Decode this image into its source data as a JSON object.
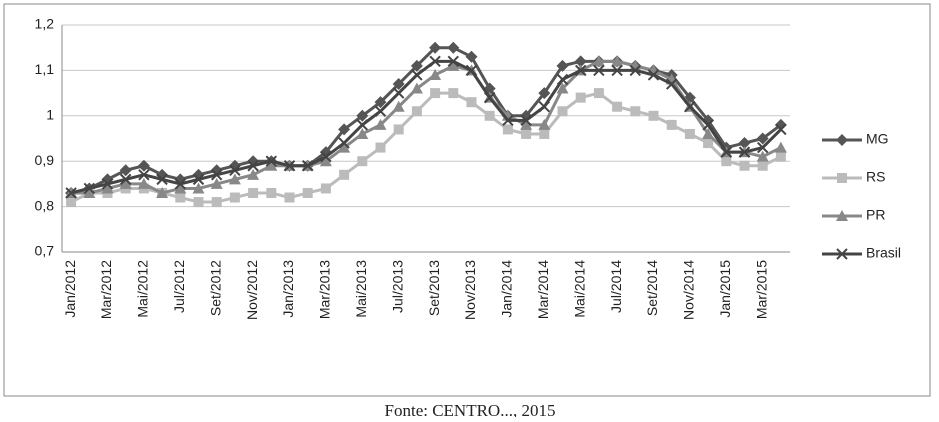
{
  "chart_data": {
    "type": "line",
    "caption": "Fonte: CENTRO..., 2015",
    "categories": [
      "Jan/2012",
      null,
      "Mar/2012",
      null,
      "Mai/2012",
      null,
      "Jul/2012",
      null,
      "Set/2012",
      null,
      "Nov/2012",
      null,
      "Jan/2013",
      null,
      "Mar/2013",
      null,
      "Mai/2013",
      null,
      "Jul/2013",
      null,
      "Set/2013",
      null,
      "Nov/2013",
      null,
      "Jan/2014",
      null,
      "Mar/2014",
      null,
      "Mai/2014",
      null,
      "Jul/2014",
      null,
      "Set/2014",
      null,
      "Nov/2014",
      null,
      "Jan/2015",
      null,
      "Mar/2015",
      null
    ],
    "series": [
      {
        "name": "MG",
        "color": "#555555",
        "marker": "diamond",
        "values": [
          0.83,
          0.84,
          0.86,
          0.88,
          0.89,
          0.87,
          0.86,
          0.87,
          0.88,
          0.89,
          0.9,
          0.9,
          0.89,
          0.89,
          0.92,
          0.97,
          1.0,
          1.03,
          1.07,
          1.11,
          1.15,
          1.15,
          1.13,
          1.06,
          1.0,
          1.0,
          1.05,
          1.11,
          1.12,
          1.12,
          1.12,
          1.11,
          1.1,
          1.09,
          1.04,
          0.99,
          0.93,
          0.94,
          0.95,
          0.98
        ]
      },
      {
        "name": "RS",
        "color": "#bbbbbb",
        "marker": "square",
        "values": [
          0.81,
          0.83,
          0.83,
          0.84,
          0.84,
          0.83,
          0.82,
          0.81,
          0.81,
          0.82,
          0.83,
          0.83,
          0.82,
          0.83,
          0.84,
          0.87,
          0.9,
          0.93,
          0.97,
          1.01,
          1.05,
          1.05,
          1.03,
          1.0,
          0.97,
          0.96,
          0.96,
          1.01,
          1.04,
          1.05,
          1.02,
          1.01,
          1.0,
          0.98,
          0.96,
          0.94,
          0.9,
          0.89,
          0.89,
          0.91
        ]
      },
      {
        "name": "PR",
        "color": "#888888",
        "marker": "triangle",
        "values": [
          0.83,
          0.83,
          0.84,
          0.85,
          0.85,
          0.83,
          0.84,
          0.84,
          0.85,
          0.86,
          0.87,
          0.89,
          0.89,
          0.89,
          0.9,
          0.93,
          0.96,
          0.98,
          1.02,
          1.06,
          1.09,
          1.11,
          1.1,
          1.04,
          1.0,
          0.98,
          0.98,
          1.06,
          1.1,
          1.12,
          1.12,
          1.11,
          1.1,
          1.08,
          1.02,
          0.96,
          0.92,
          0.92,
          0.91,
          0.93
        ]
      },
      {
        "name": "Brasil",
        "color": "#444444",
        "marker": "x",
        "values": [
          0.83,
          0.84,
          0.85,
          0.86,
          0.87,
          0.86,
          0.85,
          0.86,
          0.87,
          0.88,
          0.89,
          0.9,
          0.89,
          0.89,
          0.91,
          0.94,
          0.98,
          1.01,
          1.05,
          1.09,
          1.12,
          1.12,
          1.1,
          1.04,
          0.99,
          0.99,
          1.02,
          1.08,
          1.1,
          1.1,
          1.1,
          1.1,
          1.09,
          1.07,
          1.02,
          0.98,
          0.92,
          0.92,
          0.93,
          0.97
        ]
      }
    ],
    "ylim": [
      0.7,
      1.2
    ],
    "yticks": [
      {
        "value": 0.7,
        "label": "0,7"
      },
      {
        "value": 0.8,
        "label": "0,8"
      },
      {
        "value": 0.9,
        "label": "0,9"
      },
      1,
      {
        "value": 1.1,
        "label": "1,1"
      },
      {
        "value": 1.2,
        "label": "1,2"
      }
    ],
    "grid": true,
    "legend": "right"
  }
}
